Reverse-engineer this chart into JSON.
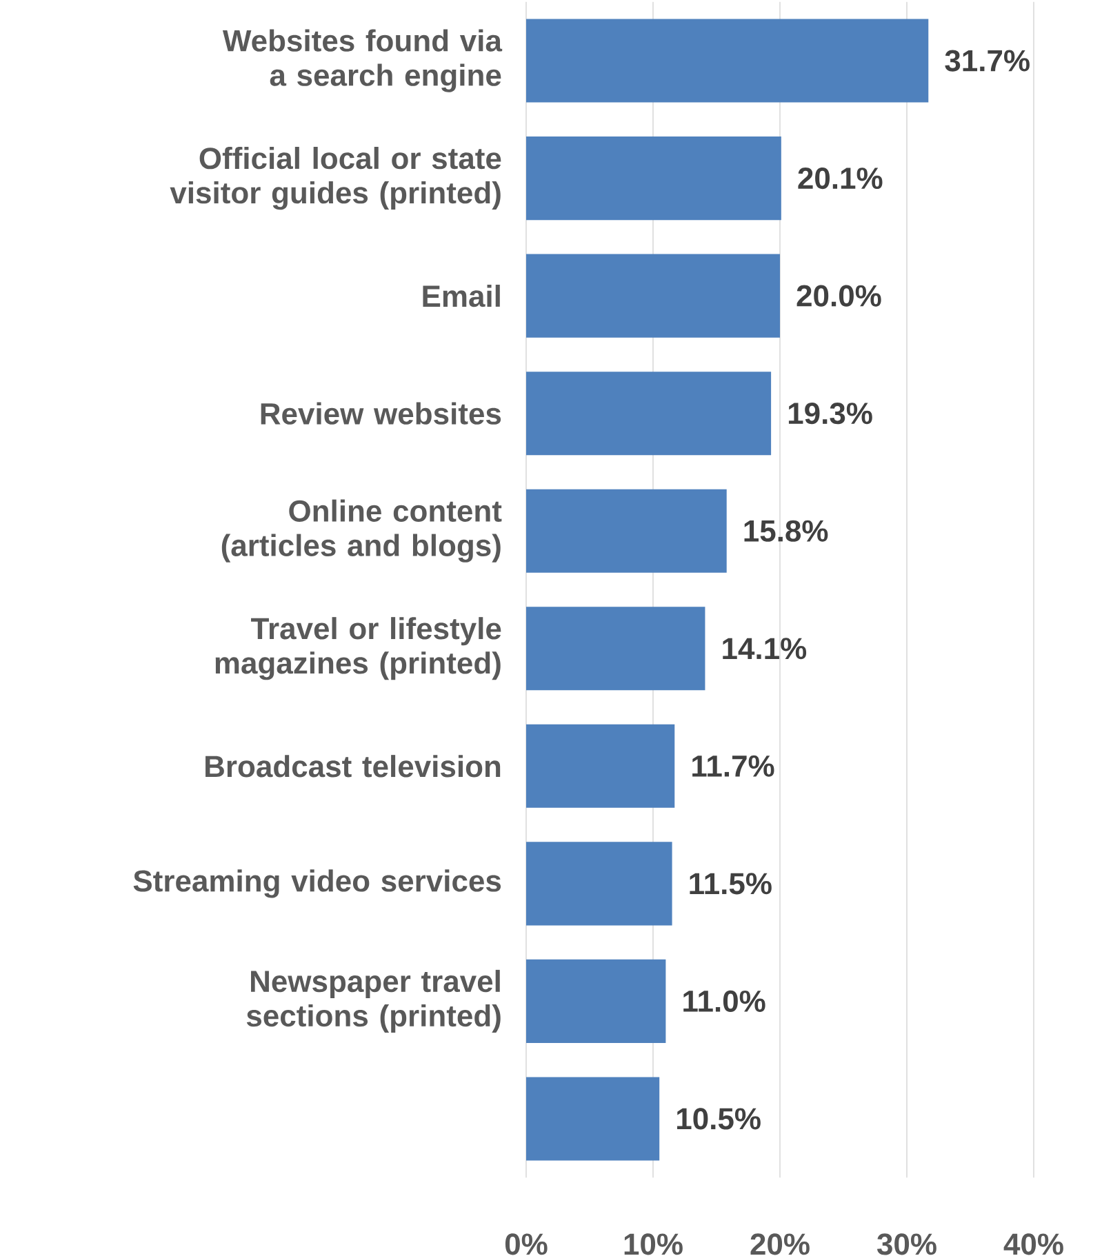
{
  "chart_data": {
    "type": "bar",
    "orientation": "horizontal",
    "categories": [
      "Websites found via a search engine",
      "Official local or state visitor guides (printed)",
      "Email",
      "Review websites",
      "Online content (articles and blogs)",
      "Travel or lifestyle magazines (printed)",
      "Broadcast television",
      "Streaming video services",
      "Newspaper travel sections (printed)",
      null
    ],
    "values": [
      31.7,
      20.1,
      20.0,
      19.3,
      15.8,
      14.1,
      11.7,
      11.5,
      11.0,
      10.5
    ],
    "value_labels": [
      "31.7%",
      "20.1%",
      "20.0%",
      "19.3%",
      "15.8%",
      "14.1%",
      "11.7%",
      "11.5%",
      "11.0%",
      "10.5%"
    ],
    "color": "#4f81bd",
    "xlim": [
      0,
      40
    ],
    "xticks": [
      {
        "value": 0,
        "label": "0%"
      },
      {
        "value": 10,
        "label": "10%"
      },
      {
        "value": 20,
        "label": "20%"
      },
      {
        "value": 30,
        "label": "30%"
      },
      {
        "value": 40,
        "label": "40%"
      }
    ],
    "grid": "x"
  }
}
